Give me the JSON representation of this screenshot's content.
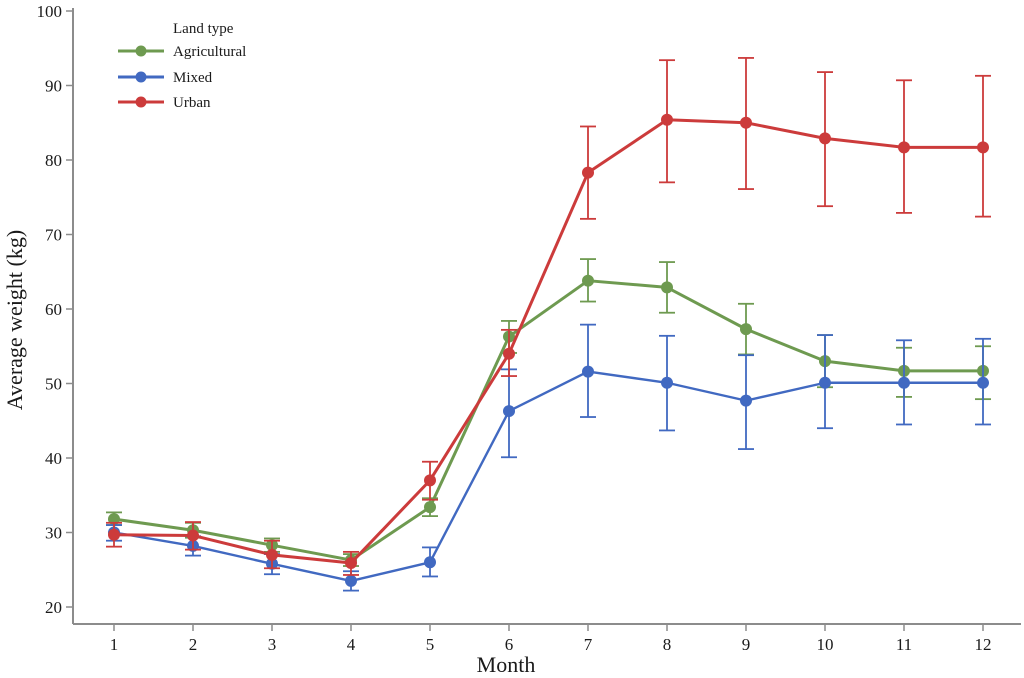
{
  "chart_data": {
    "type": "line",
    "title": "",
    "xlabel": "Month",
    "ylabel": "Average weight (kg)",
    "x": [
      1,
      2,
      3,
      4,
      5,
      6,
      7,
      8,
      9,
      10,
      11,
      12
    ],
    "x_tick_labels": [
      "1",
      "2",
      "3",
      "4",
      "5",
      "6",
      "7",
      "8",
      "9",
      "10",
      "11",
      "12"
    ],
    "ylim": [
      20,
      100
    ],
    "y_ticks": [
      20,
      30,
      40,
      50,
      60,
      70,
      80,
      90,
      100
    ],
    "y_tick_labels": [
      "20",
      "30",
      "40",
      "50",
      "60",
      "70",
      "80",
      "90",
      "100"
    ],
    "grid": false,
    "legend": {
      "title": "Land type",
      "placement": "top-left"
    },
    "series": [
      {
        "name": "Agricultural",
        "color": "#6e9a50",
        "values": [
          31.8,
          30.3,
          28.3,
          26.3,
          33.4,
          56.3,
          63.8,
          62.9,
          57.3,
          53.0,
          51.7,
          51.7
        ],
        "err_low": [
          31.0,
          29.3,
          27.4,
          25.5,
          32.2,
          54.1,
          61.0,
          59.5,
          53.9,
          49.5,
          48.2,
          47.9
        ],
        "err_high": [
          32.7,
          31.3,
          29.2,
          27.1,
          34.6,
          58.4,
          66.7,
          66.3,
          60.7,
          56.5,
          54.8,
          55.0
        ]
      },
      {
        "name": "Mixed",
        "color": "#4169c1",
        "values": [
          30.0,
          28.2,
          25.8,
          23.5,
          26.0,
          46.3,
          51.6,
          50.1,
          47.7,
          50.1,
          50.1,
          50.1
        ],
        "err_low": [
          28.9,
          26.9,
          24.4,
          22.2,
          24.1,
          40.1,
          45.5,
          43.7,
          41.2,
          44.0,
          44.5,
          44.5
        ],
        "err_high": [
          31.0,
          29.5,
          27.1,
          24.8,
          28.0,
          51.9,
          57.9,
          56.4,
          53.8,
          56.5,
          55.8,
          56.0
        ]
      },
      {
        "name": "Urban",
        "color": "#cc3b3b",
        "values": [
          29.7,
          29.6,
          27.0,
          25.9,
          37.0,
          54.0,
          78.3,
          85.4,
          85.0,
          82.9,
          81.7,
          81.7
        ],
        "err_low": [
          28.1,
          27.7,
          25.2,
          24.3,
          34.4,
          51.0,
          72.1,
          77.0,
          76.1,
          73.8,
          72.9,
          72.4
        ],
        "err_high": [
          31.3,
          31.4,
          28.9,
          27.4,
          39.5,
          57.2,
          84.5,
          93.4,
          93.7,
          91.8,
          90.7,
          91.3
        ]
      }
    ]
  }
}
